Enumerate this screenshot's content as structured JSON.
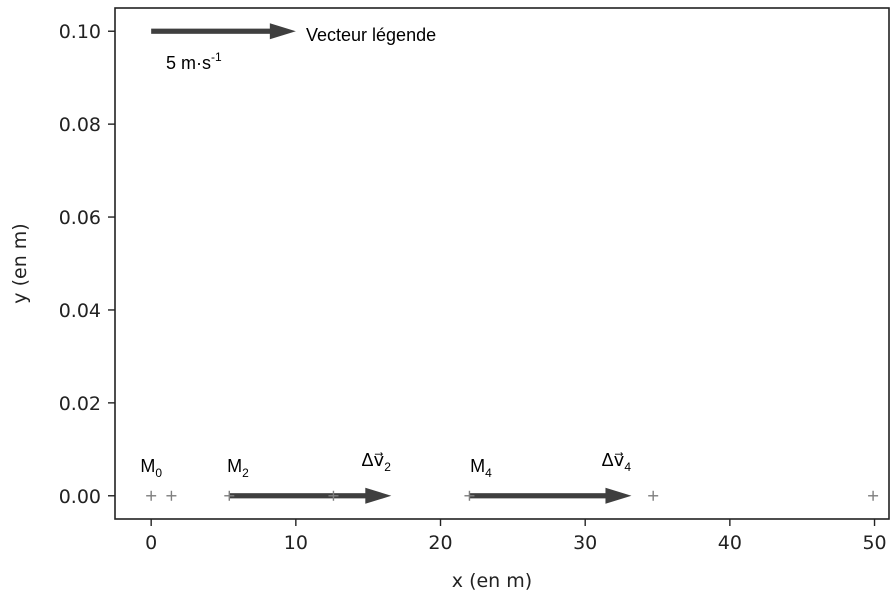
{
  "chart_data": {
    "type": "scatter",
    "xlabel": "x (en m)",
    "ylabel": "y (en m)",
    "xlim": [
      -2.5,
      51
    ],
    "ylim": [
      -0.005,
      0.105
    ],
    "xticks": [
      0,
      10,
      20,
      30,
      40,
      50
    ],
    "yticks": [
      0.0,
      0.02,
      0.04,
      0.06,
      0.08,
      0.1
    ],
    "xtick_labels": [
      "0",
      "10",
      "20",
      "30",
      "40",
      "50"
    ],
    "ytick_labels": [
      "0.00",
      "0.02",
      "0.04",
      "0.06",
      "0.08",
      "0.10"
    ],
    "grid": false,
    "points": [
      {
        "x": 0.0,
        "y": 0.0
      },
      {
        "x": 1.4,
        "y": 0.0
      },
      {
        "x": 5.4,
        "y": 0.0
      },
      {
        "x": 12.6,
        "y": 0.0
      },
      {
        "x": 22.0,
        "y": 0.0
      },
      {
        "x": 34.7,
        "y": 0.0
      },
      {
        "x": 49.9,
        "y": 0.0
      }
    ],
    "vectors": [
      {
        "name": "delta-v2",
        "x": 5.4,
        "y": 0.0,
        "dx": 11.2,
        "dy": 0.0
      },
      {
        "name": "delta-v4",
        "x": 22.0,
        "y": 0.0,
        "dx": 11.2,
        "dy": 0.0
      },
      {
        "name": "legend-vector",
        "x": 0.0,
        "y": 0.1,
        "dx": 10.0,
        "dy": 0.0
      }
    ],
    "point_labels": [
      {
        "base": "M",
        "sub": "0",
        "x": 0.0
      },
      {
        "base": "M",
        "sub": "2",
        "x": 6.0
      },
      {
        "base": "M",
        "sub": "4",
        "x": 22.8
      }
    ],
    "vector_labels": [
      {
        "base": "Δv⃗",
        "sub": "2",
        "x": 15.9
      },
      {
        "base": "Δv⃗",
        "sub": "4",
        "x": 32.5
      }
    ],
    "legend": {
      "text": "Vecteur légende",
      "value_text": "5 m·s",
      "value_exp": "-1"
    },
    "colors": {
      "marker": "#7f7f7f",
      "arrow": "#3f3f3f",
      "axis": "#222222"
    }
  }
}
